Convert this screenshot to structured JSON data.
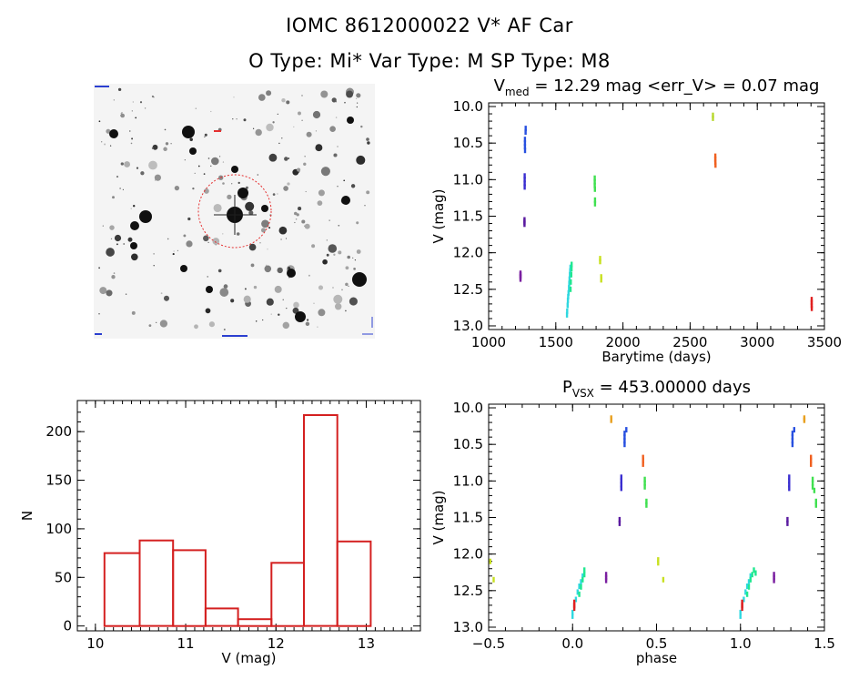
{
  "header": {
    "title_line1": "IOMC 8612000022   V* AF Car",
    "title_line2": "O Type: Mi*  Var Type: M  SP Type: M8"
  },
  "image_panel": {
    "description_icon": "star-field-image",
    "circle_color": "#e53030"
  },
  "chart_data": [
    {
      "name": "light-curve",
      "type": "scatter",
      "title_prefix": "V",
      "title_sub": "med",
      "title_rest": " = 12.29 mag <err_V> = 0.07 mag",
      "xlabel": "Barytime (days)",
      "ylabel": "V (mag)",
      "xlim": [
        1000,
        3500
      ],
      "ylim": [
        13.05,
        9.95
      ],
      "xticks": [
        "1000",
        "1500",
        "2000",
        "2500",
        "3000",
        "3500"
      ],
      "yticks": [
        "10.0",
        "10.5",
        "11.0",
        "11.5",
        "12.0",
        "12.5",
        "13.0"
      ],
      "series": [
        {
          "name": "seg1",
          "color": "#7a1fa0",
          "points": [
            [
              1237,
              12.28
            ],
            [
              1237,
              12.3
            ],
            [
              1237,
              12.33
            ],
            [
              1237,
              12.36
            ]
          ]
        },
        {
          "name": "seg2",
          "color": "#5a1aa0",
          "points": [
            [
              1267,
              11.55
            ],
            [
              1267,
              11.58
            ],
            [
              1267,
              11.61
            ]
          ]
        },
        {
          "name": "seg3",
          "color": "#3a2ed0",
          "points": [
            [
              1268,
              10.95
            ],
            [
              1268,
              11.0
            ],
            [
              1268,
              11.05
            ],
            [
              1268,
              11.1
            ]
          ]
        },
        {
          "name": "seg4",
          "color": "#2850e0",
          "points": [
            [
              1270,
              10.45
            ],
            [
              1270,
              10.5
            ],
            [
              1270,
              10.55
            ],
            [
              1271,
              10.6
            ],
            [
              1275,
              10.35
            ],
            [
              1276,
              10.3
            ]
          ]
        },
        {
          "name": "seg5",
          "color": "#30d8e0",
          "points": [
            [
              1583,
              12.85
            ],
            [
              1585,
              12.8
            ],
            [
              1588,
              12.72
            ],
            [
              1590,
              12.65
            ],
            [
              1592,
              12.6
            ],
            [
              1595,
              12.55
            ],
            [
              1598,
              12.48
            ],
            [
              1600,
              12.42
            ],
            [
              1602,
              12.36
            ],
            [
              1605,
              12.3
            ],
            [
              1607,
              12.25
            ],
            [
              1609,
              12.2
            ]
          ]
        },
        {
          "name": "seg6",
          "color": "#20e890",
          "points": [
            [
              1610,
              12.5
            ],
            [
              1612,
              12.4
            ],
            [
              1615,
              12.3
            ],
            [
              1617,
              12.22
            ],
            [
              1618,
              12.16
            ]
          ]
        },
        {
          "name": "seg7",
          "color": "#40e050",
          "points": [
            [
              1790,
              10.98
            ],
            [
              1790,
              11.03
            ],
            [
              1790,
              11.08
            ],
            [
              1791,
              11.13
            ],
            [
              1792,
              11.28
            ],
            [
              1792,
              11.33
            ]
          ]
        },
        {
          "name": "seg8",
          "color": "#c8e020",
          "points": [
            [
              1830,
              12.08
            ],
            [
              1830,
              12.12
            ],
            [
              1838,
              12.33
            ],
            [
              1838,
              12.37
            ]
          ]
        },
        {
          "name": "seg9",
          "color": "#b8d830",
          "points": [
            [
              2670,
              10.12
            ],
            [
              2670,
              10.16
            ]
          ]
        },
        {
          "name": "seg10",
          "color": "#f06020",
          "points": [
            [
              2688,
              10.68
            ],
            [
              2688,
              10.72
            ],
            [
              2688,
              10.76
            ],
            [
              2689,
              10.8
            ]
          ]
        },
        {
          "name": "seg11",
          "color": "#e02020",
          "points": [
            [
              3405,
              12.64
            ],
            [
              3405,
              12.68
            ],
            [
              3405,
              12.72
            ],
            [
              3406,
              12.76
            ]
          ]
        }
      ]
    },
    {
      "name": "histogram",
      "type": "bar",
      "xlabel": "V (mag)",
      "ylabel": "N",
      "xlim": [
        9.8,
        13.6
      ],
      "ylim": [
        -5,
        232
      ],
      "xticks": [
        "10",
        "11",
        "12",
        "13"
      ],
      "yticks": [
        "0",
        "50",
        "100",
        "150",
        "200"
      ],
      "bin_edges": [
        10.1,
        10.49,
        10.86,
        11.22,
        11.58,
        11.95,
        12.31,
        12.68,
        13.05
      ],
      "values": [
        75,
        88,
        78,
        18,
        7,
        65,
        217,
        87
      ],
      "color": "#d42020"
    },
    {
      "name": "phased-curve",
      "type": "scatter",
      "title_prefix": "P",
      "title_sub": "VSX",
      "title_rest": " = 453.00000 days",
      "xlabel": "phase",
      "ylabel": "V (mag)",
      "xlim": [
        -0.5,
        1.5
      ],
      "ylim": [
        13.05,
        9.95
      ],
      "xticks": [
        "−0.5",
        "0.0",
        "0.5",
        "1.0",
        "1.5"
      ],
      "yticks": [
        "10.0",
        "10.5",
        "11.0",
        "11.5",
        "12.0",
        "12.5",
        "13.0"
      ],
      "series": [
        {
          "name": "p-seg1",
          "color": "#7a1fa0",
          "points": [
            [
              0.2,
              12.28
            ],
            [
              0.2,
              12.32
            ],
            [
              0.2,
              12.36
            ],
            [
              1.2,
              12.28
            ],
            [
              1.2,
              12.32
            ],
            [
              1.2,
              12.36
            ]
          ]
        },
        {
          "name": "p-seg2",
          "color": "#5a1aa0",
          "points": [
            [
              0.28,
              11.53
            ],
            [
              0.28,
              11.58
            ],
            [
              1.28,
              11.53
            ],
            [
              1.28,
              11.58
            ]
          ]
        },
        {
          "name": "p-seg3",
          "color": "#3a2ed0",
          "points": [
            [
              0.29,
              10.95
            ],
            [
              0.29,
              11.0
            ],
            [
              0.29,
              11.05
            ],
            [
              0.29,
              11.1
            ],
            [
              1.29,
              10.95
            ],
            [
              1.29,
              11.0
            ],
            [
              1.29,
              11.05
            ],
            [
              1.29,
              11.1
            ]
          ]
        },
        {
          "name": "p-seg4",
          "color": "#2850e0",
          "points": [
            [
              0.31,
              10.35
            ],
            [
              0.31,
              10.4
            ],
            [
              0.31,
              10.45
            ],
            [
              0.31,
              10.5
            ],
            [
              0.32,
              10.3
            ],
            [
              1.31,
              10.35
            ],
            [
              1.31,
              10.4
            ],
            [
              1.31,
              10.45
            ],
            [
              1.31,
              10.5
            ],
            [
              1.32,
              10.3
            ]
          ]
        },
        {
          "name": "p-seg5",
          "color": "#30d8e0",
          "points": [
            [
              0.0,
              12.85
            ],
            [
              0.0,
              12.8
            ],
            [
              0.01,
              12.72
            ],
            [
              0.02,
              12.62
            ],
            [
              0.03,
              12.52
            ],
            [
              0.04,
              12.44
            ],
            [
              0.05,
              12.38
            ],
            [
              0.06,
              12.3
            ],
            [
              1.0,
              12.85
            ],
            [
              1.0,
              12.8
            ],
            [
              1.01,
              12.72
            ],
            [
              1.02,
              12.62
            ],
            [
              1.03,
              12.52
            ],
            [
              1.04,
              12.44
            ],
            [
              1.05,
              12.38
            ],
            [
              1.06,
              12.3
            ]
          ]
        },
        {
          "name": "p-seg6",
          "color": "#20e890",
          "points": [
            [
              0.04,
              12.55
            ],
            [
              0.05,
              12.45
            ],
            [
              0.06,
              12.35
            ],
            [
              0.07,
              12.28
            ],
            [
              0.07,
              12.22
            ],
            [
              1.04,
              12.55
            ],
            [
              1.05,
              12.45
            ],
            [
              1.06,
              12.35
            ],
            [
              1.07,
              12.28
            ],
            [
              1.08,
              12.22
            ],
            [
              1.09,
              12.26
            ]
          ]
        },
        {
          "name": "p-seg7",
          "color": "#40e050",
          "points": [
            [
              0.43,
              10.98
            ],
            [
              0.43,
              11.03
            ],
            [
              0.43,
              11.08
            ],
            [
              0.44,
              11.28
            ],
            [
              0.44,
              11.33
            ],
            [
              1.43,
              10.98
            ],
            [
              1.43,
              11.03
            ],
            [
              1.43,
              11.08
            ],
            [
              1.44,
              11.13
            ],
            [
              1.45,
              11.28
            ],
            [
              1.45,
              11.33
            ]
          ]
        },
        {
          "name": "p-seg8",
          "color": "#c8e020",
          "points": [
            [
              -0.49,
              12.1
            ],
            [
              -0.47,
              12.35
            ],
            [
              0.51,
              12.08
            ],
            [
              0.51,
              12.12
            ],
            [
              0.54,
              12.35
            ]
          ]
        },
        {
          "name": "p-seg9",
          "color": "#e8a020",
          "points": [
            [
              0.23,
              10.14
            ],
            [
              0.23,
              10.17
            ],
            [
              1.38,
              10.14
            ],
            [
              1.38,
              10.17
            ]
          ]
        },
        {
          "name": "p-seg10",
          "color": "#f06020",
          "points": [
            [
              0.42,
              10.68
            ],
            [
              0.42,
              10.72
            ],
            [
              0.42,
              10.77
            ],
            [
              1.42,
              10.68
            ],
            [
              1.42,
              10.72
            ],
            [
              1.42,
              10.77
            ]
          ]
        },
        {
          "name": "p-seg11",
          "color": "#e02020",
          "points": [
            [
              0.01,
              12.66
            ],
            [
              0.01,
              12.7
            ],
            [
              0.01,
              12.74
            ],
            [
              1.01,
              12.66
            ],
            [
              1.01,
              12.7
            ],
            [
              1.01,
              12.74
            ]
          ]
        }
      ]
    }
  ]
}
